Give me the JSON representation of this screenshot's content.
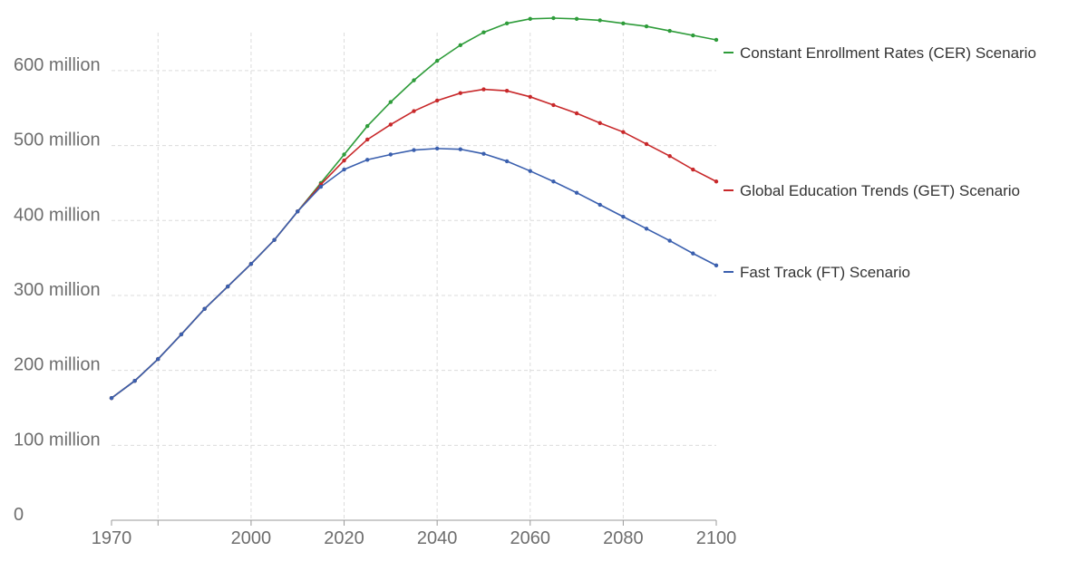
{
  "chart_data": {
    "type": "line",
    "title": "",
    "xlabel": "",
    "ylabel": "",
    "xlim": [
      1970,
      2100
    ],
    "ylim": [
      0,
      670000000
    ],
    "grid": true,
    "legend_placement": "right, inline at line ends",
    "x_ticks": [
      {
        "value": 1970,
        "label": "1970"
      },
      {
        "value": 1980,
        "label": ""
      },
      {
        "value": 2000,
        "label": "2000"
      },
      {
        "value": 2020,
        "label": "2020"
      },
      {
        "value": 2040,
        "label": "2040"
      },
      {
        "value": 2060,
        "label": "2060"
      },
      {
        "value": 2080,
        "label": "2080"
      },
      {
        "value": 2100,
        "label": "2100"
      }
    ],
    "y_ticks": [
      {
        "value": 0,
        "label": "0"
      },
      {
        "value": 100000000,
        "label": "100 million"
      },
      {
        "value": 200000000,
        "label": "200 million"
      },
      {
        "value": 300000000,
        "label": "300 million"
      },
      {
        "value": 400000000,
        "label": "400 million"
      },
      {
        "value": 500000000,
        "label": "500 million"
      },
      {
        "value": 600000000,
        "label": "600 million"
      }
    ],
    "series": [
      {
        "name": "Constant Enrollment Rates (CER) Scenario",
        "color": "#2e9c3a",
        "x": [
          1970,
          1975,
          1980,
          1985,
          1990,
          1995,
          2000,
          2005,
          2010,
          2015,
          2020,
          2025,
          2030,
          2035,
          2040,
          2045,
          2050,
          2055,
          2060,
          2065,
          2070,
          2075,
          2080,
          2085,
          2090,
          2095,
          2100
        ],
        "values": [
          163000000,
          186000000,
          215000000,
          248000000,
          282000000,
          312000000,
          342000000,
          374000000,
          412000000,
          450000000,
          488000000,
          526000000,
          558000000,
          587000000,
          613000000,
          634000000,
          651000000,
          663000000,
          669000000,
          670000000,
          669000000,
          667000000,
          663000000,
          659000000,
          653000000,
          647000000,
          641000000
        ]
      },
      {
        "name": "Global Education Trends (GET) Scenario",
        "color": "#c8282a",
        "x": [
          1970,
          1975,
          1980,
          1985,
          1990,
          1995,
          2000,
          2005,
          2010,
          2015,
          2020,
          2025,
          2030,
          2035,
          2040,
          2045,
          2050,
          2055,
          2060,
          2065,
          2070,
          2075,
          2080,
          2085,
          2090,
          2095,
          2100
        ],
        "values": [
          163000000,
          186000000,
          215000000,
          248000000,
          282000000,
          312000000,
          342000000,
          374000000,
          412000000,
          448000000,
          480000000,
          508000000,
          528000000,
          546000000,
          560000000,
          570000000,
          575000000,
          573000000,
          565000000,
          554000000,
          543000000,
          530000000,
          518000000,
          502000000,
          486000000,
          468000000,
          452000000
        ]
      },
      {
        "name": "Fast Track (FT) Scenario",
        "color": "#3a5fae",
        "x": [
          1970,
          1975,
          1980,
          1985,
          1990,
          1995,
          2000,
          2005,
          2010,
          2015,
          2020,
          2025,
          2030,
          2035,
          2040,
          2045,
          2050,
          2055,
          2060,
          2065,
          2070,
          2075,
          2080,
          2085,
          2090,
          2095,
          2100
        ],
        "values": [
          163000000,
          186000000,
          215000000,
          248000000,
          282000000,
          312000000,
          342000000,
          374000000,
          412000000,
          445000000,
          468000000,
          481000000,
          488000000,
          494000000,
          496000000,
          495000000,
          489000000,
          479000000,
          466000000,
          452000000,
          437000000,
          421000000,
          405000000,
          389000000,
          373000000,
          356000000,
          340000000
        ]
      }
    ]
  }
}
